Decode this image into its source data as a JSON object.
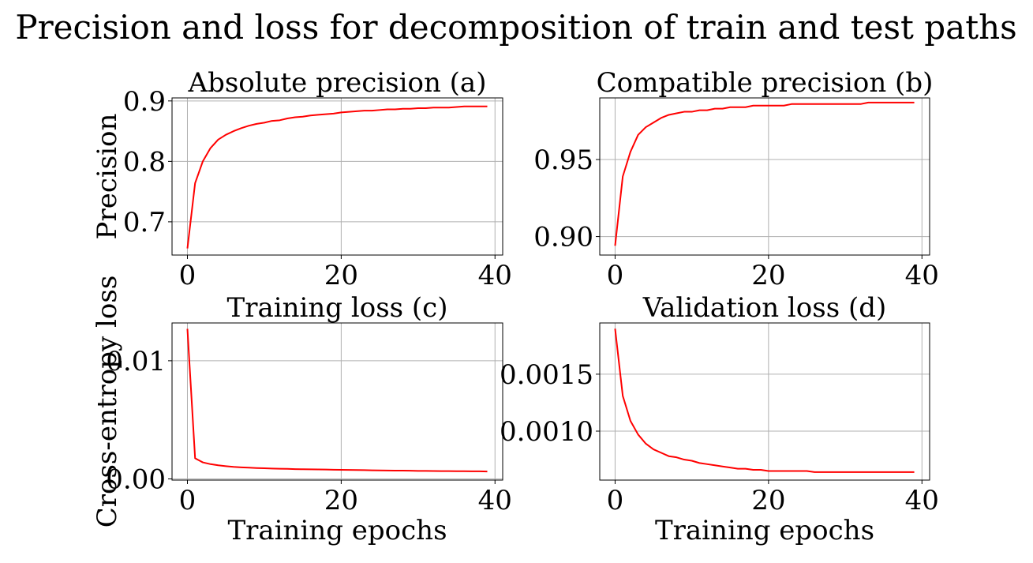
{
  "suptitle": "Precision and loss for decomposition of train and test paths",
  "line_color": "#ff0000",
  "grid_color": "#b0b0b0",
  "chart_data": [
    {
      "type": "line",
      "title": "Absolute precision (a)",
      "xlabel": "",
      "ylabel": "Precision",
      "grid": true,
      "xlim": [
        -2,
        41
      ],
      "ylim": [
        0.645,
        0.905
      ],
      "xticks": [
        0,
        20,
        40
      ],
      "xtick_labels": [
        "0",
        "20",
        "40"
      ],
      "yticks": [
        0.7,
        0.8,
        0.9
      ],
      "ytick_labels": [
        "0.7",
        "0.8",
        "0.9"
      ],
      "x": [
        0,
        1,
        2,
        3,
        4,
        5,
        6,
        7,
        8,
        9,
        10,
        11,
        12,
        13,
        14,
        15,
        16,
        17,
        18,
        19,
        20,
        21,
        22,
        23,
        24,
        25,
        26,
        27,
        28,
        29,
        30,
        31,
        32,
        33,
        34,
        35,
        36,
        37,
        38,
        39
      ],
      "series": [
        {
          "values": [
            0.656,
            0.764,
            0.8,
            0.822,
            0.836,
            0.844,
            0.85,
            0.855,
            0.859,
            0.862,
            0.864,
            0.867,
            0.868,
            0.871,
            0.873,
            0.874,
            0.876,
            0.877,
            0.878,
            0.879,
            0.881,
            0.882,
            0.883,
            0.884,
            0.884,
            0.885,
            0.886,
            0.886,
            0.887,
            0.887,
            0.888,
            0.888,
            0.889,
            0.889,
            0.889,
            0.89,
            0.891,
            0.891,
            0.891,
            0.891
          ]
        }
      ]
    },
    {
      "type": "line",
      "title": "Compatible precision (b)",
      "xlabel": "",
      "ylabel": "",
      "grid": true,
      "xlim": [
        -2,
        41
      ],
      "ylim": [
        0.888,
        0.99
      ],
      "xticks": [
        0,
        20,
        40
      ],
      "xtick_labels": [
        "0",
        "20",
        "40"
      ],
      "yticks": [
        0.9,
        0.95
      ],
      "ytick_labels": [
        "0.90",
        "0.95"
      ],
      "x": [
        0,
        1,
        2,
        3,
        4,
        5,
        6,
        7,
        8,
        9,
        10,
        11,
        12,
        13,
        14,
        15,
        16,
        17,
        18,
        19,
        20,
        21,
        22,
        23,
        24,
        25,
        26,
        27,
        28,
        29,
        30,
        31,
        32,
        33,
        34,
        35,
        36,
        37,
        38,
        39
      ],
      "series": [
        {
          "values": [
            0.894,
            0.939,
            0.955,
            0.966,
            0.971,
            0.974,
            0.977,
            0.979,
            0.98,
            0.981,
            0.981,
            0.982,
            0.982,
            0.983,
            0.983,
            0.984,
            0.984,
            0.984,
            0.985,
            0.985,
            0.985,
            0.985,
            0.985,
            0.986,
            0.986,
            0.986,
            0.986,
            0.986,
            0.986,
            0.986,
            0.986,
            0.986,
            0.986,
            0.987,
            0.987,
            0.987,
            0.987,
            0.987,
            0.987,
            0.987
          ]
        }
      ]
    },
    {
      "type": "line",
      "title": "Training loss (c)",
      "xlabel": "Training epochs",
      "ylabel": "Cross-entropy loss",
      "grid": true,
      "xlim": [
        -2,
        41
      ],
      "ylim": [
        -0.0001,
        0.0132
      ],
      "xticks": [
        0,
        20,
        40
      ],
      "xtick_labels": [
        "0",
        "20",
        "40"
      ],
      "yticks": [
        0.0,
        0.01
      ],
      "ytick_labels": [
        "0.00",
        "0.01"
      ],
      "x": [
        0,
        1,
        2,
        3,
        4,
        5,
        6,
        7,
        8,
        9,
        10,
        11,
        12,
        13,
        14,
        15,
        16,
        17,
        18,
        19,
        20,
        21,
        22,
        23,
        24,
        25,
        26,
        27,
        28,
        29,
        30,
        31,
        32,
        33,
        34,
        35,
        36,
        37,
        38,
        39
      ],
      "series": [
        {
          "values": [
            0.0127,
            0.00175,
            0.0014,
            0.00125,
            0.00115,
            0.00108,
            0.00102,
            0.00098,
            0.00095,
            0.00092,
            0.0009,
            0.00088,
            0.00086,
            0.00085,
            0.00083,
            0.00082,
            0.00081,
            0.0008,
            0.00079,
            0.00078,
            0.00077,
            0.00076,
            0.00075,
            0.00074,
            0.00073,
            0.00072,
            0.00071,
            0.0007,
            0.0007,
            0.00069,
            0.00068,
            0.00068,
            0.00067,
            0.00066,
            0.00066,
            0.00065,
            0.00065,
            0.00064,
            0.00064,
            0.00063
          ]
        }
      ]
    },
    {
      "type": "line",
      "title": "Validation loss (d)",
      "xlabel": "Training epochs",
      "ylabel": "",
      "grid": true,
      "xlim": [
        -2,
        41
      ],
      "ylim": [
        0.00057,
        0.00195
      ],
      "xticks": [
        0,
        20,
        40
      ],
      "xtick_labels": [
        "0",
        "20",
        "40"
      ],
      "yticks": [
        0.001,
        0.0015
      ],
      "ytick_labels": [
        "0.0010",
        "0.0015"
      ],
      "x": [
        0,
        1,
        2,
        3,
        4,
        5,
        6,
        7,
        8,
        9,
        10,
        11,
        12,
        13,
        14,
        15,
        16,
        17,
        18,
        19,
        20,
        21,
        22,
        23,
        24,
        25,
        26,
        27,
        28,
        29,
        30,
        31,
        32,
        33,
        34,
        35,
        36,
        37,
        38,
        39
      ],
      "series": [
        {
          "values": [
            0.0019,
            0.00131,
            0.00109,
            0.00097,
            0.00089,
            0.00084,
            0.00081,
            0.00078,
            0.00077,
            0.00075,
            0.00074,
            0.00072,
            0.00071,
            0.0007,
            0.00069,
            0.00068,
            0.00067,
            0.00067,
            0.00066,
            0.00066,
            0.00065,
            0.00065,
            0.00065,
            0.00065,
            0.00065,
            0.00065,
            0.00064,
            0.00064,
            0.00064,
            0.00064,
            0.00064,
            0.00064,
            0.00064,
            0.00064,
            0.00064,
            0.00064,
            0.00064,
            0.00064,
            0.00064,
            0.00064
          ]
        }
      ]
    }
  ]
}
